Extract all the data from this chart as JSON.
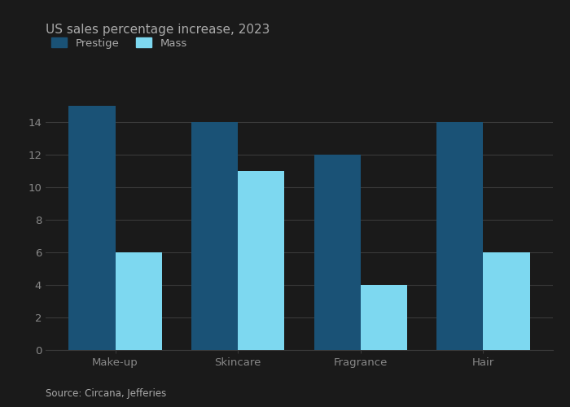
{
  "title": "US sales percentage increase, 2023",
  "categories": [
    "Make-up",
    "Skincare",
    "Fragrance",
    "Hair"
  ],
  "prestige_values": [
    15,
    14,
    12,
    14
  ],
  "mass_values": [
    6,
    11,
    4,
    6
  ],
  "prestige_color": "#1a5276",
  "mass_color": "#7dd8f0",
  "ylim": [
    0,
    16
  ],
  "yticks": [
    0,
    2,
    4,
    6,
    8,
    10,
    12,
    14
  ],
  "legend_labels": [
    "Prestige",
    "Mass"
  ],
  "source_text": "Source: Circana, Jefferies",
  "bar_width": 0.38,
  "background_color": "#1a1a1a",
  "plot_bg_color": "#1a1a1a",
  "grid_color": "#3a3a3a",
  "text_color": "#aaaaaa",
  "title_color": "#aaaaaa",
  "tick_color": "#888888"
}
